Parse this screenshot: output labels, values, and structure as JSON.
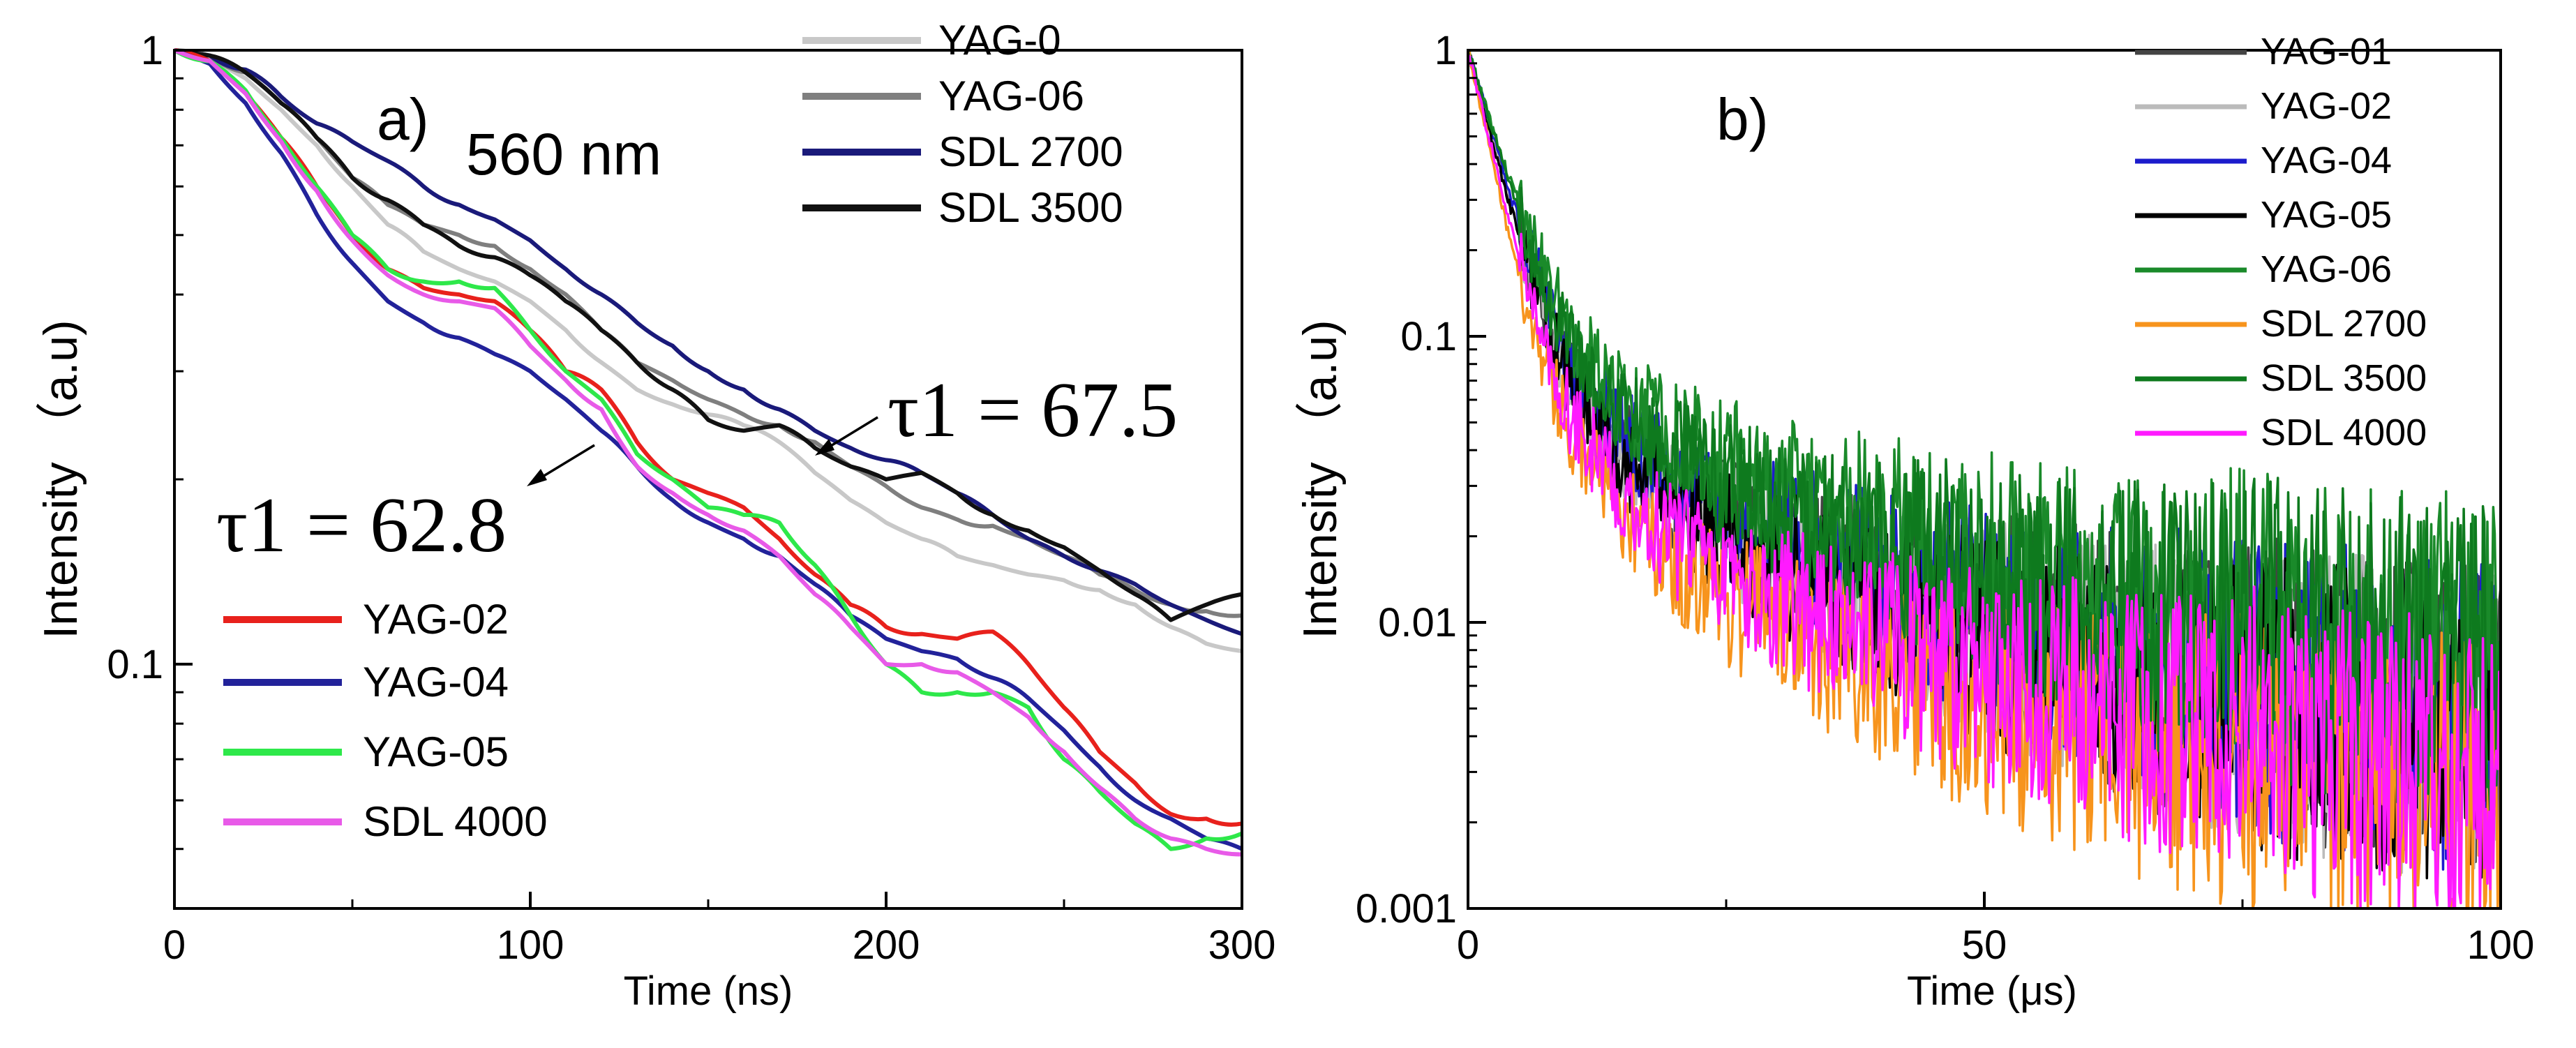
{
  "chart_data": [
    {
      "type": "line",
      "panel_label": "a)",
      "annotation_wavelength": "560 nm",
      "xlabel": "Time  (ns)",
      "ylabel": "Intensity （a.u)",
      "xlim": [
        0,
        300
      ],
      "ylim": [
        0.04,
        1
      ],
      "yscale": "log",
      "xticks": [
        0,
        100,
        200,
        300
      ],
      "xtick_labels": [
        "0",
        "100",
        "200",
        "300"
      ],
      "yticks": [
        1,
        0.1
      ],
      "ytick_labels": [
        "1",
        "0.1"
      ],
      "annotations": [
        {
          "text": "τ1 = 67.5",
          "x": 205,
          "y": 0.232,
          "arrow_to": [
            180,
            0.205
          ]
        },
        {
          "text": "τ1 = 62.8",
          "x": 10,
          "y": 0.144,
          "arrow_to": [
            118,
            0.2
          ]
        }
      ],
      "legend_top": [
        "YAG-0",
        "YAG-06",
        "SDL 2700",
        "SDL 3500"
      ],
      "legend_bottom": [
        "YAG-02",
        "YAG-04",
        "YAG-05",
        "SDL 4000"
      ],
      "series": [
        {
          "name": "YAG-0",
          "color": "#c8c8c8",
          "x": [
            0,
            10,
            20,
            30,
            40,
            50,
            60,
            70,
            80,
            90,
            100,
            110,
            120,
            130,
            140,
            150,
            160,
            170,
            180,
            190,
            200,
            210,
            220,
            230,
            240,
            250,
            260,
            270,
            280,
            290,
            300
          ],
          "y": [
            1,
            0.97,
            0.9,
            0.8,
            0.7,
            0.6,
            0.52,
            0.47,
            0.44,
            0.42,
            0.39,
            0.35,
            0.31,
            0.28,
            0.265,
            0.255,
            0.245,
            0.23,
            0.205,
            0.185,
            0.17,
            0.16,
            0.15,
            0.145,
            0.14,
            0.137,
            0.132,
            0.125,
            0.115,
            0.108,
            0.105
          ]
        },
        {
          "name": "YAG-06",
          "color": "#7f7f7f",
          "x": [
            0,
            10,
            20,
            30,
            40,
            50,
            60,
            70,
            80,
            90,
            100,
            110,
            120,
            130,
            140,
            150,
            160,
            170,
            180,
            190,
            200,
            210,
            220,
            230,
            240,
            250,
            260,
            270,
            280,
            290,
            300
          ],
          "y": [
            1,
            0.98,
            0.92,
            0.82,
            0.72,
            0.62,
            0.56,
            0.52,
            0.5,
            0.48,
            0.44,
            0.4,
            0.35,
            0.31,
            0.29,
            0.27,
            0.255,
            0.245,
            0.23,
            0.21,
            0.195,
            0.18,
            0.172,
            0.168,
            0.16,
            0.15,
            0.14,
            0.132,
            0.125,
            0.122,
            0.12
          ]
        },
        {
          "name": "SDL 2700",
          "color": "#1a1a7a",
          "x": [
            0,
            10,
            20,
            30,
            40,
            50,
            60,
            70,
            80,
            90,
            100,
            110,
            120,
            130,
            140,
            150,
            160,
            170,
            180,
            190,
            200,
            210,
            220,
            230,
            240,
            250,
            260,
            270,
            280,
            290,
            300
          ],
          "y": [
            1,
            0.98,
            0.93,
            0.84,
            0.76,
            0.71,
            0.66,
            0.6,
            0.56,
            0.53,
            0.49,
            0.44,
            0.4,
            0.36,
            0.33,
            0.3,
            0.28,
            0.26,
            0.24,
            0.225,
            0.215,
            0.205,
            0.19,
            0.175,
            0.16,
            0.15,
            0.142,
            0.135,
            0.125,
            0.118,
            0.112
          ]
        },
        {
          "name": "SDL 3500",
          "color": "#111111",
          "x": [
            0,
            10,
            20,
            30,
            40,
            50,
            60,
            70,
            80,
            90,
            100,
            110,
            120,
            130,
            140,
            150,
            160,
            170,
            180,
            190,
            200,
            210,
            220,
            230,
            240,
            250,
            260,
            270,
            280,
            290,
            300
          ],
          "y": [
            1,
            0.98,
            0.92,
            0.82,
            0.72,
            0.62,
            0.57,
            0.52,
            0.48,
            0.46,
            0.43,
            0.39,
            0.35,
            0.31,
            0.28,
            0.25,
            0.24,
            0.245,
            0.225,
            0.21,
            0.2,
            0.205,
            0.19,
            0.175,
            0.165,
            0.155,
            0.142,
            0.13,
            0.118,
            0.125,
            0.13
          ]
        },
        {
          "name": "YAG-02",
          "color": "#e8211c",
          "x": [
            0,
            10,
            20,
            30,
            40,
            50,
            60,
            70,
            80,
            90,
            100,
            110,
            120,
            130,
            140,
            150,
            160,
            170,
            180,
            190,
            200,
            210,
            220,
            230,
            240,
            250,
            260,
            270,
            280,
            290,
            300
          ],
          "y": [
            1,
            0.96,
            0.85,
            0.72,
            0.6,
            0.5,
            0.44,
            0.41,
            0.4,
            0.39,
            0.35,
            0.3,
            0.28,
            0.23,
            0.2,
            0.19,
            0.18,
            0.16,
            0.14,
            0.125,
            0.115,
            0.112,
            0.11,
            0.113,
            0.1,
            0.085,
            0.072,
            0.064,
            0.057,
            0.056,
            0.055
          ]
        },
        {
          "name": "YAG-04",
          "color": "#22229a",
          "x": [
            0,
            10,
            20,
            30,
            40,
            50,
            60,
            70,
            80,
            90,
            100,
            110,
            120,
            130,
            140,
            150,
            160,
            170,
            180,
            190,
            200,
            210,
            220,
            230,
            240,
            250,
            260,
            270,
            280,
            290,
            300
          ],
          "y": [
            1,
            0.95,
            0.82,
            0.68,
            0.54,
            0.45,
            0.39,
            0.36,
            0.34,
            0.32,
            0.3,
            0.27,
            0.24,
            0.21,
            0.185,
            0.17,
            0.16,
            0.15,
            0.135,
            0.12,
            0.11,
            0.105,
            0.102,
            0.095,
            0.088,
            0.078,
            0.068,
            0.06,
            0.056,
            0.052,
            0.05
          ]
        },
        {
          "name": "YAG-05",
          "color": "#2ee84a",
          "x": [
            0,
            10,
            20,
            30,
            40,
            50,
            60,
            70,
            80,
            90,
            100,
            110,
            120,
            130,
            140,
            150,
            160,
            170,
            180,
            190,
            200,
            210,
            220,
            230,
            240,
            250,
            260,
            270,
            280,
            290,
            300
          ],
          "y": [
            1,
            0.96,
            0.86,
            0.72,
            0.6,
            0.5,
            0.44,
            0.42,
            0.42,
            0.41,
            0.35,
            0.3,
            0.27,
            0.22,
            0.2,
            0.18,
            0.175,
            0.17,
            0.145,
            0.12,
            0.1,
            0.09,
            0.09,
            0.09,
            0.085,
            0.07,
            0.062,
            0.055,
            0.05,
            0.052,
            0.053
          ]
        },
        {
          "name": "SDL 4000",
          "color": "#e85ae8",
          "x": [
            0,
            10,
            20,
            30,
            40,
            50,
            60,
            70,
            80,
            90,
            100,
            110,
            120,
            130,
            140,
            150,
            160,
            170,
            180,
            190,
            200,
            210,
            220,
            230,
            240,
            250,
            260,
            270,
            280,
            290,
            300
          ],
          "y": [
            1,
            0.96,
            0.85,
            0.71,
            0.59,
            0.49,
            0.43,
            0.4,
            0.39,
            0.38,
            0.33,
            0.29,
            0.26,
            0.21,
            0.19,
            0.175,
            0.165,
            0.15,
            0.13,
            0.115,
            0.1,
            0.1,
            0.097,
            0.09,
            0.082,
            0.072,
            0.063,
            0.056,
            0.052,
            0.05,
            0.049
          ]
        }
      ]
    },
    {
      "type": "line",
      "panel_label": "b)",
      "xlabel": "Time  (μs)",
      "ylabel": "Intensity （a.u)",
      "xlim": [
        0,
        100
      ],
      "ylim": [
        0.001,
        1
      ],
      "yscale": "log",
      "xticks": [
        0,
        50,
        100
      ],
      "xtick_labels": [
        "0",
        "50",
        "100"
      ],
      "yticks": [
        1,
        0.1,
        0.01,
        0.001
      ],
      "ytick_labels": [
        "1",
        "0.1",
        "0.01",
        "0.001"
      ],
      "legend": [
        "YAG-01",
        "YAG-02",
        "YAG-04",
        "YAG-05",
        "YAG-06",
        "SDL 2700",
        "SDL 3500",
        "SDL 4000"
      ],
      "series": [
        {
          "name": "YAG-01",
          "color": "#444444",
          "x": [
            0,
            2,
            4,
            6,
            8,
            10,
            15,
            20,
            25,
            30,
            40,
            50,
            60,
            70,
            80,
            90,
            100
          ],
          "y": [
            1,
            0.55,
            0.3,
            0.18,
            0.1,
            0.07,
            0.04,
            0.028,
            0.022,
            0.018,
            0.013,
            0.01,
            0.008,
            0.0065,
            0.0055,
            0.005,
            0.0045
          ]
        },
        {
          "name": "YAG-02",
          "color": "#bbbbbb",
          "x": [
            0,
            2,
            4,
            6,
            8,
            10,
            15,
            20,
            25,
            30,
            40,
            50,
            60,
            70,
            80,
            90,
            100
          ],
          "y": [
            1,
            0.55,
            0.3,
            0.17,
            0.1,
            0.068,
            0.038,
            0.027,
            0.021,
            0.017,
            0.012,
            0.0095,
            0.0075,
            0.006,
            0.0052,
            0.0047,
            0.0043
          ]
        },
        {
          "name": "YAG-04",
          "color": "#1c1ccc",
          "x": [
            0,
            2,
            4,
            6,
            8,
            10,
            15,
            20,
            25,
            30,
            40,
            50,
            60,
            70,
            80,
            90,
            100
          ],
          "y": [
            1,
            0.57,
            0.32,
            0.2,
            0.12,
            0.08,
            0.045,
            0.031,
            0.024,
            0.02,
            0.014,
            0.0105,
            0.0082,
            0.0068,
            0.0057,
            0.005,
            0.0046
          ]
        },
        {
          "name": "YAG-05",
          "color": "#000000",
          "x": [
            0,
            2,
            4,
            6,
            8,
            10,
            15,
            20,
            25,
            30,
            40,
            50,
            60,
            70,
            80,
            90,
            100
          ],
          "y": [
            1,
            0.54,
            0.29,
            0.17,
            0.1,
            0.066,
            0.037,
            0.026,
            0.02,
            0.016,
            0.0115,
            0.009,
            0.0072,
            0.006,
            0.0051,
            0.0046,
            0.0042
          ]
        },
        {
          "name": "YAG-06",
          "color": "#1a8a2a",
          "x": [
            0,
            2,
            4,
            6,
            8,
            10,
            15,
            20,
            25,
            30,
            40,
            50,
            60,
            70,
            80,
            90,
            100
          ],
          "y": [
            1,
            0.6,
            0.36,
            0.23,
            0.15,
            0.1,
            0.06,
            0.045,
            0.036,
            0.03,
            0.022,
            0.017,
            0.013,
            0.011,
            0.0095,
            0.0085,
            0.0078
          ]
        },
        {
          "name": "SDL 2700",
          "color": "#f7941d",
          "x": [
            0,
            2,
            4,
            6,
            8,
            10,
            15,
            20,
            25,
            30,
            40,
            50,
            60,
            70,
            80,
            90,
            100
          ],
          "y": [
            1,
            0.48,
            0.22,
            0.12,
            0.07,
            0.045,
            0.024,
            0.016,
            0.012,
            0.0095,
            0.0065,
            0.005,
            0.004,
            0.0034,
            0.003,
            0.0027,
            0.0025
          ]
        },
        {
          "name": "SDL 3500",
          "color": "#0e7a1e",
          "x": [
            0,
            2,
            4,
            6,
            8,
            10,
            15,
            20,
            25,
            30,
            40,
            50,
            60,
            70,
            80,
            90,
            100
          ],
          "y": [
            1,
            0.58,
            0.34,
            0.21,
            0.13,
            0.09,
            0.052,
            0.038,
            0.03,
            0.025,
            0.019,
            0.015,
            0.012,
            0.0102,
            0.0089,
            0.008,
            0.0072
          ]
        },
        {
          "name": "SDL 4000",
          "color": "#ff1aff",
          "x": [
            0,
            2,
            4,
            6,
            8,
            10,
            15,
            20,
            25,
            30,
            40,
            50,
            60,
            70,
            80,
            90,
            100
          ],
          "y": [
            1,
            0.5,
            0.25,
            0.14,
            0.08,
            0.052,
            0.028,
            0.019,
            0.015,
            0.012,
            0.0085,
            0.0065,
            0.0052,
            0.0043,
            0.0037,
            0.0033,
            0.003
          ]
        }
      ]
    }
  ]
}
